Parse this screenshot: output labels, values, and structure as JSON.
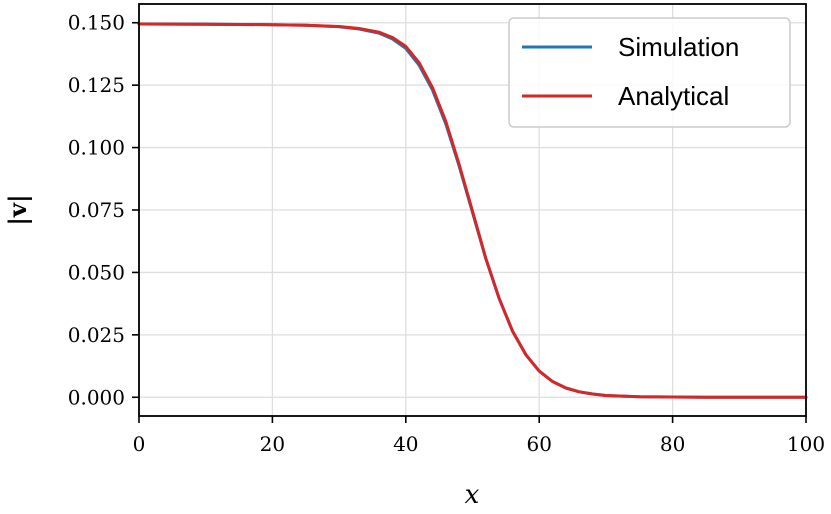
{
  "chart_data": {
    "type": "line",
    "title": "",
    "xlabel": "x",
    "ylabel": "|v|",
    "xlim": [
      0,
      100
    ],
    "ylim": [
      -0.0075,
      0.1575
    ],
    "xticks": [
      0,
      20,
      40,
      60,
      80,
      100
    ],
    "xtick_labels": [
      "0",
      "20",
      "40",
      "60",
      "80",
      "100"
    ],
    "yticks": [
      0.0,
      0.025,
      0.05,
      0.075,
      0.1,
      0.125,
      0.15
    ],
    "ytick_labels": [
      "0.000",
      "0.025",
      "0.050",
      "0.075",
      "0.100",
      "0.125",
      "0.150"
    ],
    "grid": true,
    "legend_position": "top-right",
    "series": [
      {
        "name": "Simulation",
        "color": "#1f77b4",
        "x": [
          0,
          10,
          20,
          25,
          30,
          33,
          36,
          38,
          40,
          42,
          44,
          46,
          48,
          50,
          52,
          54,
          56,
          58,
          60,
          62,
          64,
          66,
          68,
          70,
          75,
          80,
          85,
          90,
          95,
          100
        ],
        "y": [
          0.1495,
          0.1494,
          0.1492,
          0.149,
          0.1484,
          0.1475,
          0.1458,
          0.1435,
          0.1397,
          0.133,
          0.123,
          0.1095,
          0.0925,
          0.074,
          0.0555,
          0.0395,
          0.0265,
          0.017,
          0.0105,
          0.0063,
          0.0037,
          0.0022,
          0.0013,
          0.0007,
          0.0002,
          0.0001,
          0.0,
          0.0,
          0.0,
          0.0
        ]
      },
      {
        "name": "Analytical",
        "color": "#d62728",
        "x": [
          0,
          10,
          20,
          25,
          30,
          33,
          36,
          38,
          40,
          42,
          44,
          46,
          48,
          50,
          52,
          54,
          56,
          58,
          60,
          62,
          64,
          66,
          68,
          70,
          75,
          80,
          85,
          90,
          95,
          100
        ],
        "y": [
          0.1495,
          0.1494,
          0.1492,
          0.149,
          0.1485,
          0.1477,
          0.1462,
          0.1441,
          0.1405,
          0.134,
          0.124,
          0.1105,
          0.0932,
          0.0745,
          0.0557,
          0.0395,
          0.0265,
          0.017,
          0.0105,
          0.0063,
          0.0037,
          0.0022,
          0.0013,
          0.0007,
          0.0002,
          0.0001,
          0.0,
          0.0,
          0.0,
          0.0
        ]
      }
    ]
  }
}
